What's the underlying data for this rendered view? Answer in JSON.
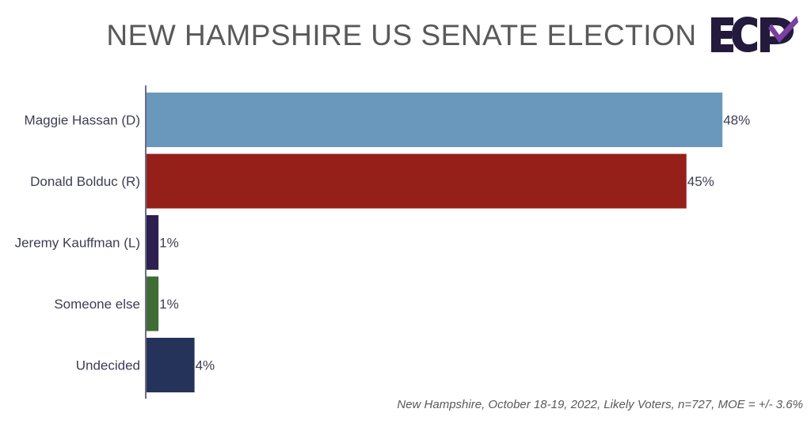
{
  "title": "NEW HAMPSHIRE US SENATE ELECTION",
  "logo_text": "ECP",
  "footnote": "New Hampshire, October 18-19, 2022, Likely Voters, n=727, MOE = +/- 3.6%",
  "colors": {
    "hassan": "#6a98bd",
    "bolduc": "#95201a",
    "kauffman": "#2d1f4f",
    "someone_else": "#3f6b34",
    "undecided": "#25335a",
    "logo_dark": "#231a3d",
    "logo_accent": "#7a3fa0"
  },
  "chart_data": {
    "type": "bar",
    "orientation": "horizontal",
    "categories": [
      "Maggie Hassan (D)",
      "Donald Bolduc (R)",
      "Jeremy Kauffman (L)",
      "Someone else",
      "Undecided"
    ],
    "values": [
      48,
      45,
      1,
      1,
      4
    ],
    "value_labels": [
      "48%",
      "45%",
      "1%",
      "1%",
      "4%"
    ],
    "bar_colors": [
      "#6a98bd",
      "#95201a",
      "#2d1f4f",
      "#3f6b34",
      "#25335a"
    ],
    "xlim": [
      0,
      50
    ],
    "grid": false
  }
}
